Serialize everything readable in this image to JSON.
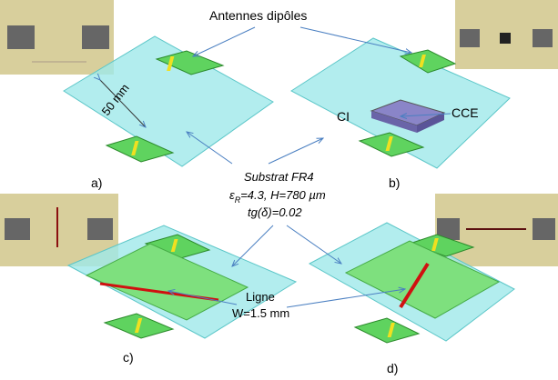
{
  "labels": {
    "antennas": "Antennes dipôles",
    "distance": "50 mm",
    "ci": "CI",
    "cce": "CCE",
    "line": "Ligne",
    "line_width": "W=1.5 mm"
  },
  "substrate": {
    "title": "Substrat FR4",
    "symbol": "ε",
    "subscript": "R",
    "params": "=4.3, H=780 µm",
    "loss": "tg(δ)=0.02"
  },
  "panels": [
    "a)",
    "b)",
    "c)",
    "d)"
  ]
}
